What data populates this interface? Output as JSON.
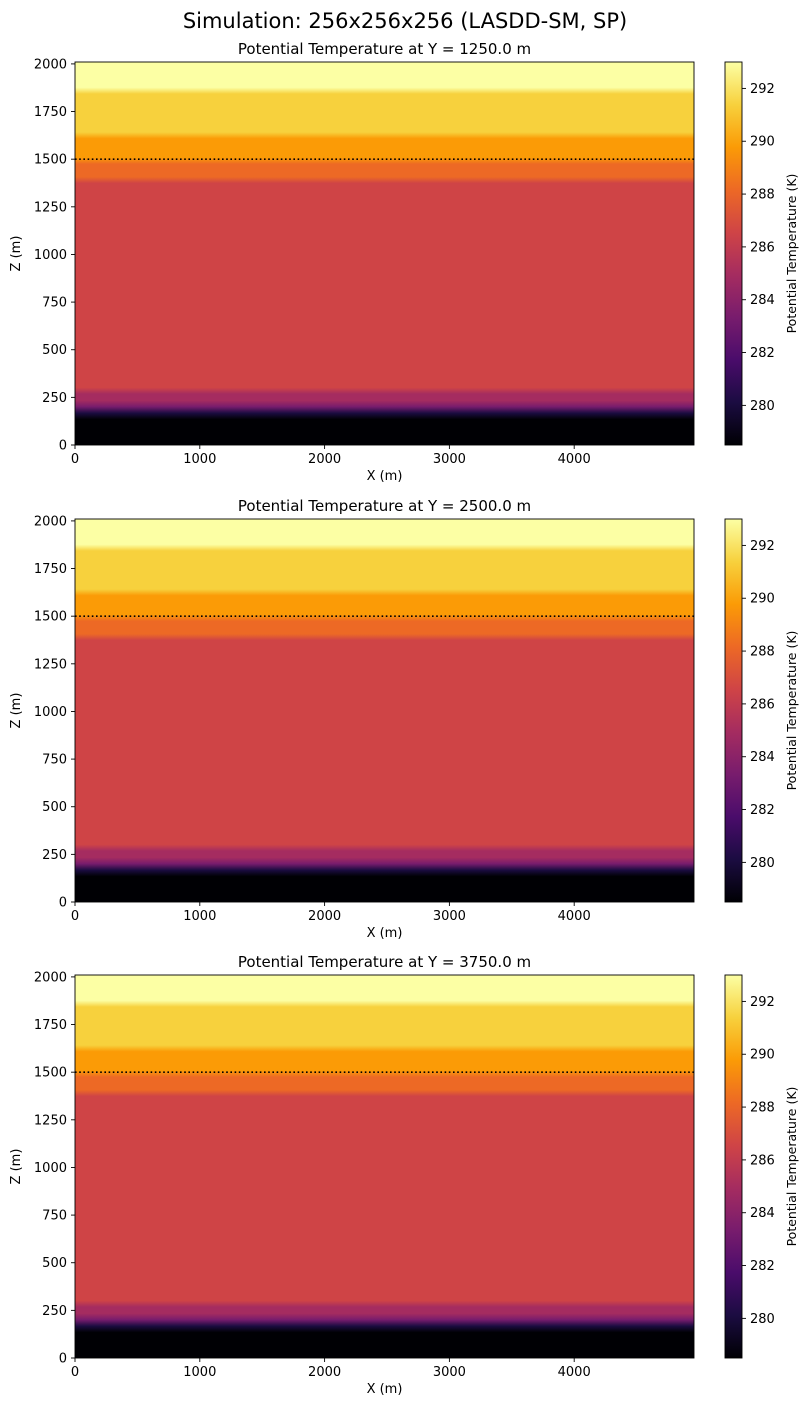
{
  "figure": {
    "suptitle": "Simulation: 256x256x256 (LASDD-SM, SP)"
  },
  "colormap": {
    "name": "inferno",
    "stops": [
      "#000004",
      "#1b0c41",
      "#4a0c6b",
      "#781c6d",
      "#a52c60",
      "#cf4446",
      "#ed6925",
      "#fb9b06",
      "#f7d13d",
      "#fcffa4"
    ]
  },
  "chart_data": [
    {
      "type": "heatmap",
      "title": "Potential Temperature at Y = 1250.0 m",
      "xlabel": "X (m)",
      "ylabel": "Z (m)",
      "xlim": [
        0,
        4960
      ],
      "ylim": [
        0,
        2010
      ],
      "xticks": [
        0,
        1000,
        2000,
        3000,
        4000
      ],
      "yticks": [
        0,
        250,
        500,
        750,
        1000,
        1250,
        1500,
        1750,
        2000
      ],
      "colorbar": {
        "label": "Potential Temperature (K)",
        "range": [
          278.5,
          293.0
        ],
        "ticks": [
          280,
          282,
          284,
          286,
          288,
          290,
          292
        ]
      },
      "profile": {
        "z": [
          0,
          150,
          180,
          220,
          280,
          320,
          1250,
          1400,
          1500,
          1700,
          2010
        ],
        "theta": [
          278.6,
          279.0,
          281.0,
          284.0,
          285.9,
          286.1,
          286.3,
          287.5,
          289.2,
          291.2,
          293.0
        ]
      },
      "reference_line": {
        "z": 1500,
        "style": "dotted",
        "color": "#000000"
      }
    },
    {
      "type": "heatmap",
      "title": "Potential Temperature at Y = 2500.0 m",
      "xlabel": "X (m)",
      "ylabel": "Z (m)",
      "xlim": [
        0,
        4960
      ],
      "ylim": [
        0,
        2010
      ],
      "xticks": [
        0,
        1000,
        2000,
        3000,
        4000
      ],
      "yticks": [
        0,
        250,
        500,
        750,
        1000,
        1250,
        1500,
        1750,
        2000
      ],
      "colorbar": {
        "label": "Potential Temperature (K)",
        "range": [
          278.5,
          293.0
        ],
        "ticks": [
          280,
          282,
          284,
          286,
          288,
          290,
          292
        ]
      },
      "profile": {
        "z": [
          0,
          150,
          180,
          220,
          280,
          320,
          1250,
          1400,
          1500,
          1700,
          2010
        ],
        "theta": [
          278.6,
          279.0,
          281.0,
          284.0,
          285.9,
          286.1,
          286.3,
          287.5,
          289.2,
          291.2,
          293.0
        ]
      },
      "reference_line": {
        "z": 1500,
        "style": "dotted",
        "color": "#000000"
      }
    },
    {
      "type": "heatmap",
      "title": "Potential Temperature at Y = 3750.0 m",
      "xlabel": "X (m)",
      "ylabel": "Z (m)",
      "xlim": [
        0,
        4960
      ],
      "ylim": [
        0,
        2010
      ],
      "xticks": [
        0,
        1000,
        2000,
        3000,
        4000
      ],
      "yticks": [
        0,
        250,
        500,
        750,
        1000,
        1250,
        1500,
        1750,
        2000
      ],
      "colorbar": {
        "label": "Potential Temperature (K)",
        "range": [
          278.5,
          293.0
        ],
        "ticks": [
          280,
          282,
          284,
          286,
          288,
          290,
          292
        ]
      },
      "profile": {
        "z": [
          0,
          150,
          180,
          220,
          280,
          320,
          1250,
          1400,
          1500,
          1700,
          2010
        ],
        "theta": [
          278.6,
          279.0,
          281.0,
          284.0,
          285.9,
          286.1,
          286.3,
          287.5,
          289.2,
          291.2,
          293.0
        ]
      },
      "reference_line": {
        "z": 1500,
        "style": "dotted",
        "color": "#000000"
      }
    }
  ]
}
